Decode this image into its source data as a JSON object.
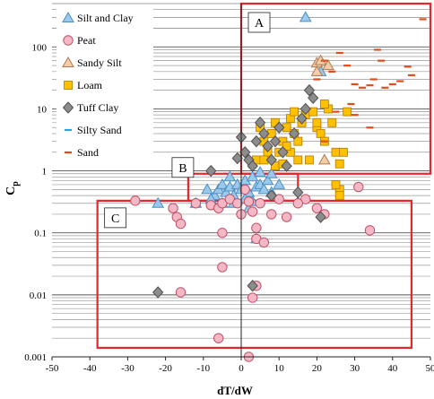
{
  "chart_data": {
    "type": "scatter",
    "title": "",
    "xlabel": "dT/dW",
    "ylabel": "C",
    "ylabel_sub": "p",
    "xlim": [
      -50,
      50
    ],
    "ylim": [
      0.001,
      500
    ],
    "yscale": "log",
    "x_ticks": [
      -50,
      -40,
      -30,
      -20,
      -10,
      0,
      10,
      20,
      30,
      40,
      50
    ],
    "x_tick_labels": [
      "-50",
      "-40",
      "-30",
      "-20",
      "-10",
      "0",
      "10",
      "20",
      "30",
      "40",
      "50"
    ],
    "y_ticks": [
      0.001,
      0.01,
      0.1,
      1,
      10,
      100
    ],
    "y_tick_labels": [
      "0.001",
      "0.01",
      "0.1",
      "1",
      "10",
      "100"
    ],
    "grid": "horizontal minor log lines",
    "legend_position": "top-left",
    "colors": {
      "silt_clay": "#9cc9ea",
      "silt_clay_edge": "#4a8fc6",
      "peat": "#f4b8c4",
      "peat_edge": "#c0506a",
      "sandy_silt": "#f2cda8",
      "sandy_silt_edge": "#b07850",
      "loam": "#ffc000",
      "loam_edge": "#b07a00",
      "tuff_clay": "#8c8c8c",
      "tuff_clay_edge": "#505050",
      "silty_sand": "#2ea3d9",
      "sand": "#e24a1a",
      "region": "#e8262a"
    },
    "regions": [
      {
        "label": "A",
        "x0": 0,
        "x1": 50,
        "y0": 0.9,
        "y1": 500
      },
      {
        "label": "B",
        "x0": -14,
        "x1": 15,
        "y0": 0.33,
        "y1": 0.9
      },
      {
        "label": "C",
        "x0": -38,
        "x1": 45,
        "y0": 0.0014,
        "y1": 0.33
      }
    ],
    "series": [
      {
        "name": "Silt and Clay",
        "marker": "triangle",
        "points": [
          [
            17,
            300
          ],
          [
            21,
            40
          ],
          [
            -7,
            0.4
          ],
          [
            -6,
            0.5
          ],
          [
            -5,
            0.6
          ],
          [
            -4,
            0.45
          ],
          [
            -3,
            0.55
          ],
          [
            -2,
            0.4
          ],
          [
            -1,
            0.6
          ],
          [
            0,
            0.5
          ],
          [
            1,
            0.7
          ],
          [
            2,
            0.45
          ],
          [
            3,
            0.8
          ],
          [
            4,
            0.55
          ],
          [
            5,
            0.6
          ],
          [
            6,
            0.5
          ],
          [
            7,
            0.7
          ],
          [
            8,
            0.9
          ],
          [
            -8,
            0.35
          ],
          [
            -5,
            0.3
          ],
          [
            -2,
            0.3
          ],
          [
            1,
            0.35
          ],
          [
            3,
            0.32
          ],
          [
            -12,
            0.3
          ],
          [
            -9,
            0.5
          ],
          [
            -3,
            0.8
          ],
          [
            5,
            0.95
          ],
          [
            2,
            0.25
          ],
          [
            -22,
            0.3
          ],
          [
            4,
            0.08
          ],
          [
            10,
            0.6
          ],
          [
            8,
            0.45
          ]
        ]
      },
      {
        "name": "Peat",
        "marker": "circle",
        "points": [
          [
            -28,
            0.33
          ],
          [
            -18,
            0.25
          ],
          [
            -17,
            0.18
          ],
          [
            -16,
            0.14
          ],
          [
            -12,
            0.3
          ],
          [
            -8,
            0.28
          ],
          [
            -6,
            0.25
          ],
          [
            -5,
            0.3
          ],
          [
            -5,
            0.1
          ],
          [
            -3,
            0.35
          ],
          [
            -1,
            0.3
          ],
          [
            0,
            0.2
          ],
          [
            1,
            0.5
          ],
          [
            2,
            0.32
          ],
          [
            3,
            0.22
          ],
          [
            4,
            0.12
          ],
          [
            4,
            0.08
          ],
          [
            5,
            0.3
          ],
          [
            6,
            0.07
          ],
          [
            8,
            0.2
          ],
          [
            10,
            0.35
          ],
          [
            12,
            0.18
          ],
          [
            17,
            0.35
          ],
          [
            20,
            0.25
          ],
          [
            22,
            0.2
          ],
          [
            31,
            0.55
          ],
          [
            34,
            0.11
          ],
          [
            -16,
            0.011
          ],
          [
            -5,
            0.028
          ],
          [
            -6,
            0.002
          ],
          [
            2,
            0.001
          ],
          [
            4,
            0.014
          ],
          [
            3,
            0.009
          ],
          [
            15,
            0.3
          ]
        ]
      },
      {
        "name": "Sandy Silt",
        "marker": "triangle",
        "points": [
          [
            20,
            55
          ],
          [
            21,
            60
          ],
          [
            22,
            1.5
          ],
          [
            23,
            50
          ],
          [
            20,
            40
          ]
        ]
      },
      {
        "name": "Loam",
        "marker": "square",
        "points": [
          [
            5,
            5
          ],
          [
            6,
            3
          ],
          [
            7,
            2
          ],
          [
            8,
            4
          ],
          [
            9,
            6
          ],
          [
            10,
            2
          ],
          [
            11,
            3
          ],
          [
            12,
            5
          ],
          [
            13,
            7
          ],
          [
            14,
            4
          ],
          [
            15,
            3
          ],
          [
            16,
            6
          ],
          [
            17,
            8
          ],
          [
            18,
            1.5
          ],
          [
            19,
            9
          ],
          [
            20,
            5
          ],
          [
            21,
            4
          ],
          [
            22,
            3
          ],
          [
            23,
            10
          ],
          [
            24,
            6
          ],
          [
            25,
            2
          ],
          [
            26,
            1.3
          ],
          [
            27,
            2
          ],
          [
            28,
            9
          ],
          [
            4,
            1.5
          ],
          [
            6,
            1.5
          ],
          [
            9,
            1.2
          ],
          [
            11,
            1.3
          ],
          [
            13,
            2
          ],
          [
            15,
            1.5
          ],
          [
            26,
            0.5
          ],
          [
            26,
            0.4
          ],
          [
            25,
            0.6
          ],
          [
            22,
            12
          ],
          [
            20,
            6
          ],
          [
            12,
            2.5
          ],
          [
            14,
            9
          ]
        ]
      },
      {
        "name": "Tuff Clay",
        "marker": "diamond",
        "points": [
          [
            -8,
            1
          ],
          [
            -1,
            1.6
          ],
          [
            0,
            3.5
          ],
          [
            1,
            2
          ],
          [
            2,
            1.5
          ],
          [
            3,
            1.2
          ],
          [
            4,
            3
          ],
          [
            5,
            6
          ],
          [
            6,
            4
          ],
          [
            7,
            2.5
          ],
          [
            8,
            1.5
          ],
          [
            9,
            3
          ],
          [
            10,
            5
          ],
          [
            11,
            2
          ],
          [
            12,
            1.2
          ],
          [
            14,
            4
          ],
          [
            16,
            7
          ],
          [
            17,
            10
          ],
          [
            18,
            20
          ],
          [
            19,
            15
          ],
          [
            8,
            0.4
          ],
          [
            15,
            0.45
          ],
          [
            21,
            0.18
          ],
          [
            -22,
            0.011
          ],
          [
            3,
            0.014
          ]
        ]
      },
      {
        "name": "Silty Sand",
        "marker": "dash",
        "points": []
      },
      {
        "name": "Sand",
        "marker": "dash",
        "points": [
          [
            20,
            30
          ],
          [
            22,
            60
          ],
          [
            24,
            40
          ],
          [
            26,
            80
          ],
          [
            28,
            50
          ],
          [
            30,
            25
          ],
          [
            32,
            22
          ],
          [
            34,
            24
          ],
          [
            35,
            30
          ],
          [
            36,
            90
          ],
          [
            37,
            60
          ],
          [
            38,
            22
          ],
          [
            40,
            25
          ],
          [
            42,
            28
          ],
          [
            44,
            48
          ],
          [
            45,
            35
          ],
          [
            48,
            280
          ],
          [
            30,
            8
          ],
          [
            34,
            5
          ],
          [
            25,
            9
          ],
          [
            29,
            12
          ],
          [
            22,
            3
          ]
        ]
      }
    ]
  }
}
